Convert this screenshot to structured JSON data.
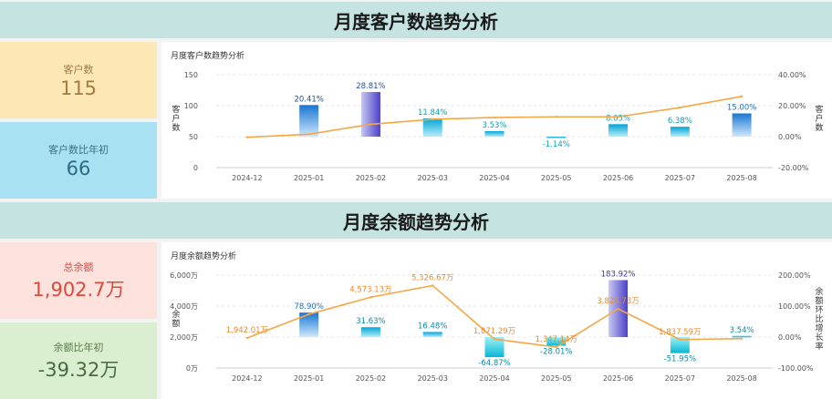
{
  "customers": {
    "banner": "月度客户数趋势分析",
    "kpi1": {
      "label": "客户数",
      "value": "115"
    },
    "kpi2": {
      "label": "客户数比年初",
      "value": "66"
    },
    "panel_title": "月度客户数趋势分析",
    "colors": {
      "bar": "#2196f3",
      "line": "#f7a645"
    },
    "chart_data": {
      "type": "bar",
      "categories": [
        "2024-12",
        "2025-01",
        "2025-02",
        "2025-03",
        "2025-04",
        "2025-05",
        "2025-06",
        "2025-07",
        "2025-08"
      ],
      "yticks": [
        "150",
        "100",
        "50",
        "0"
      ],
      "y2ticks": [
        "40.00%",
        "20.00%",
        "0.00%",
        "-20.00%"
      ],
      "ylim": [
        0,
        150
      ],
      "y2lim": [
        -20,
        40
      ],
      "ylabel": "客户数",
      "y2label": "客户数",
      "series": [
        {
          "values": [
            49,
            54,
            70,
            78,
            81,
            82,
            82,
            97,
            115
          ]
        },
        {
          "values": [
            null,
            20.41,
            28.81,
            11.84,
            3.53,
            -1.14,
            8.05,
            6.38,
            15.0
          ],
          "labels": [
            "",
            "20.41%",
            "28.81%",
            "11.84%",
            "3.53%",
            "-1.14%",
            "8.05%",
            "6.38%",
            "15.00%"
          ]
        }
      ]
    }
  },
  "balance": {
    "banner": "月度余额趋势分析",
    "kpi1": {
      "label": "总余额",
      "value": "1,902.7万"
    },
    "kpi2": {
      "label": "余额比年初",
      "value": "-39.32万"
    },
    "panel_title": "月度余额趋势分析",
    "chart_data": {
      "type": "bar",
      "categories": [
        "2024-12",
        "2025-01",
        "2025-02",
        "2025-03",
        "2025-04",
        "2025-05",
        "2025-06",
        "2025-07",
        "2025-08"
      ],
      "yticks": [
        "6,000万",
        "4,000万",
        "2,000万",
        "0万"
      ],
      "y2ticks": [
        "200.00%",
        "100.00%",
        "0.00%",
        "-100.00%"
      ],
      "ylim": [
        0,
        6000
      ],
      "y2lim": [
        -100,
        200
      ],
      "ylabel": "余额",
      "y2label": "余额环比增长率",
      "series": [
        {
          "values": [
            1942.01,
            3474,
            4573.13,
            5326.67,
            1871.29,
            1347.14,
            3824.73,
            1837.59,
            1902.7
          ],
          "labels": [
            "1,942.01万",
            "",
            "4,573.13万",
            "5,326.67万",
            "1,871.29万",
            "1,347.14万",
            "3,824.73万",
            "1,837.59万",
            ""
          ]
        },
        {
          "values": [
            null,
            78.9,
            31.63,
            16.48,
            -64.87,
            -28.01,
            183.92,
            -51.95,
            3.54
          ],
          "labels": [
            "",
            "78.90%",
            "31.63%",
            "16.48%",
            "-64.87%",
            "-28.01%",
            "183.92%",
            "-51.95%",
            "3.54%"
          ]
        }
      ]
    }
  }
}
